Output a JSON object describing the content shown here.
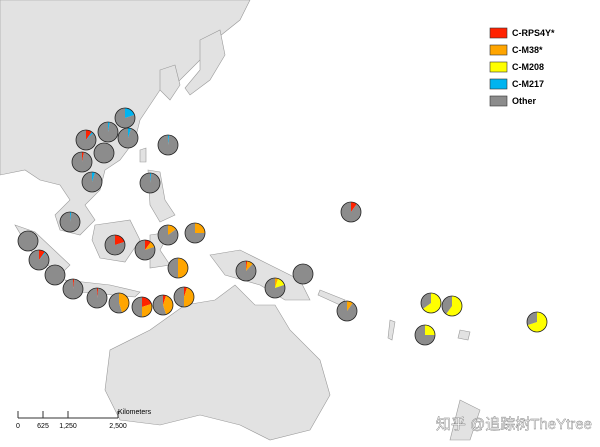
{
  "legend": {
    "items": [
      {
        "name": "C-RPS4Y*",
        "color": "#ff2200"
      },
      {
        "name": "C-M38*",
        "color": "#ffa500"
      },
      {
        "name": "C-M208",
        "color": "#ffff00"
      },
      {
        "name": "C-M217",
        "color": "#00b4f0"
      },
      {
        "name": "Other",
        "color": "#8c8c8c"
      }
    ]
  },
  "scale_bar": {
    "unit": "Kilometers",
    "ticks": [
      {
        "value": 0,
        "label": "0"
      },
      {
        "value": 625,
        "label": "625"
      },
      {
        "value": 1250,
        "label": "1,250"
      },
      {
        "value": 2500,
        "label": "2,500"
      }
    ]
  },
  "watermark": "知乎 @追踪树TheYtree",
  "pies": [
    {
      "values": [
        0,
        0,
        0,
        20,
        80
      ]
    },
    {
      "values": [
        10,
        0,
        0,
        3,
        87
      ]
    },
    {
      "values": [
        0,
        0,
        0,
        3,
        97
      ]
    },
    {
      "values": [
        0,
        0,
        0,
        5,
        95
      ]
    },
    {
      "values": [
        3,
        0,
        0,
        0,
        97
      ]
    },
    {
      "values": [
        0,
        0,
        0,
        0,
        100
      ]
    },
    {
      "values": [
        0,
        0,
        0,
        2,
        98
      ]
    },
    {
      "values": [
        0,
        0,
        0,
        5,
        95
      ]
    },
    {
      "values": [
        0,
        0,
        0,
        2,
        98
      ]
    },
    {
      "values": [
        0,
        0,
        0,
        2,
        98
      ]
    },
    {
      "values": [
        0,
        0,
        0,
        0,
        100
      ]
    },
    {
      "values": [
        10,
        0,
        0,
        2,
        88
      ]
    },
    {
      "values": [
        0,
        0,
        0,
        0,
        100
      ]
    },
    {
      "values": [
        2,
        0,
        0,
        0,
        98
      ]
    },
    {
      "values": [
        2,
        0,
        0,
        0,
        98
      ]
    },
    {
      "values": [
        20,
        0,
        0,
        0,
        80
      ]
    },
    {
      "values": [
        10,
        10,
        0,
        0,
        80
      ]
    },
    {
      "values": [
        0,
        15,
        0,
        0,
        85
      ]
    },
    {
      "values": [
        0,
        25,
        0,
        0,
        75
      ]
    },
    {
      "values": [
        0,
        50,
        0,
        0,
        50
      ]
    },
    {
      "values": [
        0,
        45,
        0,
        0,
        55
      ]
    },
    {
      "values": [
        20,
        30,
        0,
        0,
        50
      ]
    },
    {
      "values": [
        5,
        40,
        0,
        0,
        55
      ]
    },
    {
      "values": [
        5,
        45,
        0,
        0,
        50
      ]
    },
    {
      "values": [
        2,
        10,
        0,
        0,
        88
      ]
    },
    {
      "values": [
        0,
        5,
        15,
        0,
        80
      ]
    },
    {
      "values": [
        0,
        0,
        0,
        0,
        100
      ]
    },
    {
      "values": [
        10,
        0,
        0,
        0,
        90
      ]
    },
    {
      "values": [
        0,
        10,
        0,
        0,
        90
      ]
    },
    {
      "values": [
        0,
        0,
        65,
        0,
        35
      ]
    },
    {
      "values": [
        0,
        0,
        60,
        0,
        40
      ]
    },
    {
      "values": [
        0,
        0,
        25,
        0,
        75
      ]
    },
    {
      "values": [
        0,
        0,
        70,
        0,
        30
      ]
    }
  ]
}
